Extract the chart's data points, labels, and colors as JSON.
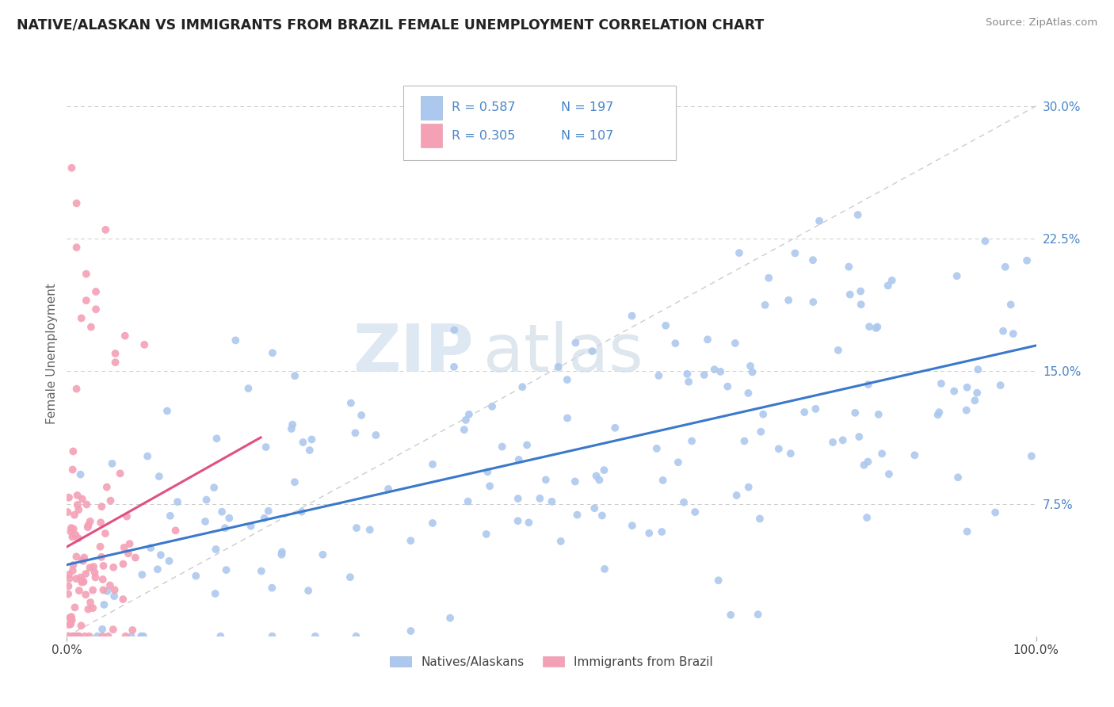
{
  "title": "NATIVE/ALASKAN VS IMMIGRANTS FROM BRAZIL FEMALE UNEMPLOYMENT CORRELATION CHART",
  "source": "Source: ZipAtlas.com",
  "ylabel": "Female Unemployment",
  "legend_r1": "R = 0.587",
  "legend_n1": "N = 197",
  "legend_r2": "R = 0.305",
  "legend_n2": "N = 107",
  "legend_label1": "Natives/Alaskans",
  "legend_label2": "Immigrants from Brazil",
  "color_blue": "#adc8ee",
  "color_pink": "#f4a0b5",
  "color_blue_text": "#4a86c8",
  "line_blue": "#3a78cc",
  "line_pink": "#e05080",
  "line_diagonal": "#cccccc",
  "watermark_zip": "ZIP",
  "watermark_atlas": "atlas",
  "background": "#ffffff",
  "xlim": [
    0.0,
    1.0
  ],
  "ylim": [
    0.0,
    0.32
  ],
  "yticks": [
    0.075,
    0.15,
    0.225,
    0.3
  ],
  "ytick_labels": [
    "7.5%",
    "15.0%",
    "22.5%",
    "30.0%"
  ],
  "xticks": [
    0.0,
    1.0
  ],
  "xtick_labels": [
    "0.0%",
    "100.0%"
  ],
  "seed": 99,
  "n_blue": 197,
  "n_pink": 107,
  "blue_intercept": 0.04,
  "blue_slope": 0.11,
  "blue_noise": 0.045,
  "pink_intercept": 0.02,
  "pink_slope": 0.18,
  "pink_noise": 0.035
}
